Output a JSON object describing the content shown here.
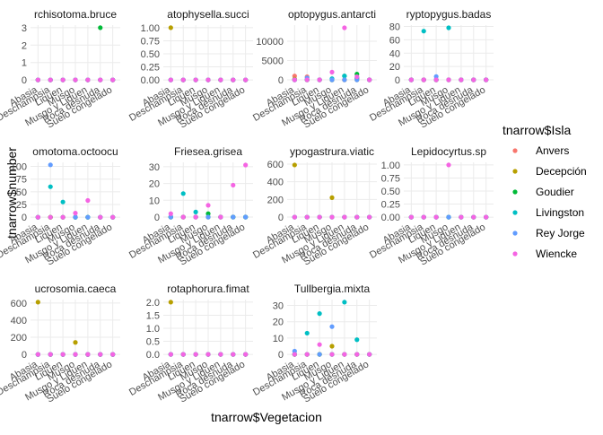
{
  "chart_data": {
    "type": "scatter",
    "x_label": "tnarrow$Vegetacion",
    "y_label": "tnarrow$number",
    "legend_title": "tnarrow$Isla",
    "categories": [
      "Abasia",
      "Deschampsia",
      "Liquen",
      "Musgo",
      "Musgo y Liquen",
      "Roca desnuda",
      "Suelo congelado"
    ],
    "series": [
      {
        "name": "Anvers",
        "color": "#F8766D"
      },
      {
        "name": "Decepción",
        "color": "#B79F00"
      },
      {
        "name": "Goudier",
        "color": "#00BA38"
      },
      {
        "name": "Livingston",
        "color": "#00BFC4"
      },
      {
        "name": "Rey Jorge",
        "color": "#619CFF"
      },
      {
        "name": "Wiencke",
        "color": "#F564E3"
      }
    ],
    "grid": true,
    "facets": [
      {
        "title": "rchisotoma.bruce",
        "ylim": [
          -0.15,
          3.15
        ],
        "yticks": [
          0,
          1,
          2,
          3
        ],
        "values": [
          [
            0,
            0,
            0,
            0,
            0,
            0,
            0
          ],
          [
            0,
            0,
            0,
            0,
            0,
            0,
            0
          ],
          [
            0,
            0,
            0,
            0,
            0,
            3,
            0
          ],
          [
            0,
            0,
            0,
            0,
            0,
            0,
            0
          ],
          [
            0,
            0,
            0,
            0,
            0,
            0,
            0
          ],
          [
            0,
            0,
            0,
            0,
            0,
            0,
            0
          ]
        ]
      },
      {
        "title": "atophysella.succi",
        "ylim": [
          -0.05,
          1.05
        ],
        "yticks": [
          {
            "value": 0,
            "label": "0.00"
          },
          {
            "value": 0.25,
            "label": "0.25"
          },
          {
            "value": 0.5,
            "label": "0.50"
          },
          {
            "value": 0.75,
            "label": "0.75"
          },
          {
            "value": 1,
            "label": "1.00"
          }
        ],
        "values": [
          [
            0,
            0,
            0,
            0,
            0,
            0,
            0
          ],
          [
            1,
            0,
            0,
            0,
            0,
            0,
            0
          ],
          [
            0,
            0,
            0,
            0,
            0,
            0,
            0
          ],
          [
            0,
            0,
            0,
            0,
            0,
            0,
            0
          ],
          [
            0,
            0,
            0,
            0,
            0,
            0,
            0
          ],
          [
            0,
            0,
            0,
            0,
            0,
            0,
            0
          ]
        ]
      },
      {
        "title": "optopygus.antarcti",
        "ylim": [
          -700,
          14200
        ],
        "yticks": [
          0,
          5000,
          10000
        ],
        "values": [
          [
            1000,
            800,
            0,
            0,
            0,
            300,
            0
          ],
          [
            200,
            0,
            0,
            0,
            0,
            0,
            0
          ],
          [
            0,
            0,
            0,
            0,
            1000,
            1500,
            0
          ],
          [
            0,
            0,
            0,
            300,
            1000,
            500,
            0
          ],
          [
            0,
            500,
            0,
            0,
            0,
            0,
            0
          ],
          [
            0,
            0,
            0,
            2000,
            13500,
            800,
            0
          ]
        ]
      },
      {
        "title": "ryptopygus.badas",
        "ylim": [
          -4,
          82
        ],
        "yticks": [
          0,
          20,
          40,
          60,
          80
        ],
        "values": [
          [
            0,
            0,
            0,
            0,
            0,
            0,
            0
          ],
          [
            0,
            0,
            0,
            0,
            0,
            0,
            0
          ],
          [
            0,
            0,
            0,
            0,
            0,
            0,
            0
          ],
          [
            0,
            73,
            0,
            78,
            0,
            0,
            0
          ],
          [
            0,
            0,
            5,
            0,
            0,
            0,
            0
          ],
          [
            0,
            0,
            0,
            0,
            0,
            0,
            0
          ]
        ]
      },
      {
        "title": "omotoma.octoocu",
        "ylim": [
          -5,
          108
        ],
        "yticks": [
          0,
          25,
          50,
          75,
          100
        ],
        "values": [
          [
            0,
            0,
            0,
            0,
            0,
            0,
            0
          ],
          [
            0,
            0,
            0,
            0,
            0,
            0,
            0
          ],
          [
            0,
            0,
            0,
            0,
            0,
            0,
            0
          ],
          [
            0,
            60,
            30,
            0,
            0,
            0,
            0
          ],
          [
            0,
            103,
            0,
            0,
            0,
            0,
            0
          ],
          [
            0,
            0,
            0,
            8,
            33,
            0,
            0
          ]
        ]
      },
      {
        "title": "Friesea.grisea",
        "ylim": [
          -1.6,
          32.6
        ],
        "yticks": [
          0,
          10,
          20,
          30
        ],
        "values": [
          [
            0,
            0,
            0,
            0,
            0,
            0,
            0
          ],
          [
            0,
            0,
            0,
            0,
            0,
            0,
            0
          ],
          [
            0,
            0,
            0,
            2,
            0,
            0,
            0
          ],
          [
            0,
            14,
            3,
            0,
            0,
            0,
            0
          ],
          [
            0,
            0,
            0,
            0,
            0,
            0,
            0
          ],
          [
            2,
            0,
            0,
            7,
            0,
            19,
            31
          ]
        ]
      },
      {
        "title": "ypogastrura.viatic",
        "ylim": [
          -30,
          620
        ],
        "yticks": [
          0,
          200,
          400,
          600
        ],
        "values": [
          [
            0,
            0,
            0,
            0,
            0,
            0,
            0
          ],
          [
            590,
            0,
            0,
            220,
            0,
            0,
            0
          ],
          [
            0,
            0,
            0,
            0,
            0,
            0,
            0
          ],
          [
            0,
            0,
            0,
            0,
            0,
            0,
            0
          ],
          [
            0,
            0,
            0,
            0,
            0,
            0,
            0
          ],
          [
            0,
            0,
            0,
            0,
            0,
            0,
            0
          ]
        ]
      },
      {
        "title": "Lepidocyrtus.sp",
        "ylim": [
          -0.05,
          1.05
        ],
        "yticks": [
          {
            "value": 0,
            "label": "0.00"
          },
          {
            "value": 0.25,
            "label": "0.25"
          },
          {
            "value": 0.5,
            "label": "0.50"
          },
          {
            "value": 0.75,
            "label": "0.75"
          },
          {
            "value": 1,
            "label": "1.00"
          }
        ],
        "values": [
          [
            0,
            0,
            0,
            0,
            0,
            0,
            0
          ],
          [
            0,
            0,
            0,
            0,
            0,
            0,
            0
          ],
          [
            0,
            0,
            0,
            0,
            0,
            0,
            0
          ],
          [
            0,
            0,
            0,
            0,
            0,
            0,
            0
          ],
          [
            0,
            0,
            0,
            0,
            0,
            0,
            0
          ],
          [
            0,
            0,
            0,
            1,
            0,
            0,
            0
          ]
        ]
      },
      {
        "title": "ucrosomia.caeca",
        "ylim": [
          -30,
          640
        ],
        "yticks": [
          0,
          200,
          400,
          600
        ],
        "values": [
          [
            0,
            0,
            0,
            0,
            0,
            0,
            0
          ],
          [
            610,
            0,
            0,
            140,
            0,
            0,
            0
          ],
          [
            0,
            0,
            0,
            0,
            0,
            0,
            0
          ],
          [
            0,
            0,
            0,
            0,
            0,
            0,
            0
          ],
          [
            0,
            0,
            0,
            0,
            0,
            0,
            0
          ],
          [
            0,
            0,
            0,
            0,
            0,
            0,
            0
          ]
        ]
      },
      {
        "title": "rotaphorura.fimat",
        "ylim": [
          -0.1,
          2.1
        ],
        "yticks": [
          {
            "value": 0,
            "label": "0.0"
          },
          {
            "value": 0.5,
            "label": "0.5"
          },
          {
            "value": 1,
            "label": "1.0"
          },
          {
            "value": 1.5,
            "label": "1.5"
          },
          {
            "value": 2,
            "label": "2.0"
          }
        ],
        "values": [
          [
            0,
            0,
            0,
            0,
            0,
            0,
            0
          ],
          [
            2,
            0,
            0,
            0,
            0,
            0,
            0
          ],
          [
            0,
            0,
            0,
            0,
            0,
            0,
            0
          ],
          [
            0,
            0,
            0,
            0,
            0,
            0,
            0
          ],
          [
            0,
            0,
            0,
            0,
            0,
            0,
            0
          ],
          [
            0,
            0,
            0,
            0,
            0,
            0,
            0
          ]
        ]
      },
      {
        "title": "Tullbergia.mixta",
        "ylim": [
          -1.6,
          33.6
        ],
        "yticks": [
          0,
          10,
          20,
          30
        ],
        "values": [
          [
            0,
            0,
            0,
            0,
            0,
            0,
            0
          ],
          [
            0,
            0,
            0,
            5,
            0,
            0,
            0
          ],
          [
            0,
            0,
            0,
            0,
            0,
            0,
            0
          ],
          [
            0,
            13,
            25,
            0,
            32,
            9,
            0
          ],
          [
            2,
            0,
            0,
            17,
            0,
            0,
            0
          ],
          [
            0,
            0,
            6,
            0,
            0,
            0,
            0
          ]
        ]
      }
    ]
  }
}
